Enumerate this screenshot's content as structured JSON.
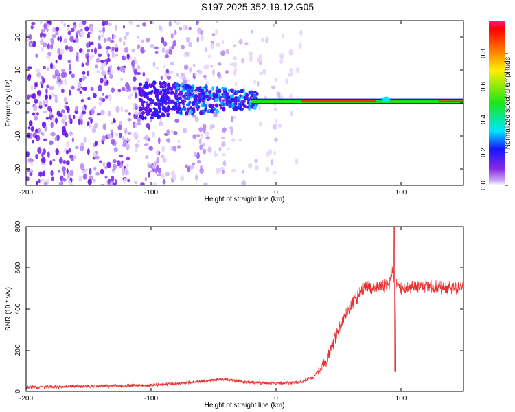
{
  "page": {
    "title": "S197.2025.352.19.12.G05"
  },
  "colors": {
    "snr_line": "#e83030",
    "axis": "#000000"
  },
  "chart_data": [
    {
      "type": "heatmap",
      "title": "",
      "xlabel": "Height of straight line (km)",
      "ylabel": "Frequency (Hz)",
      "xlim": [
        -200,
        150
      ],
      "ylim": [
        -25,
        25
      ],
      "x_ticks": [
        -200,
        -100,
        0,
        100
      ],
      "x_tick_labels": [
        "-200",
        "-100",
        "0",
        "100"
      ],
      "y_ticks": [
        -20,
        -10,
        0,
        10,
        20
      ],
      "y_tick_labels": [
        "-20",
        "-10",
        "0",
        "10",
        "20"
      ],
      "colorbar": {
        "label": "Normalized spectral amplitude",
        "range": [
          0,
          1
        ],
        "ticks": [
          0.0,
          0.2,
          0.4,
          0.6,
          0.8
        ],
        "tick_labels": [
          "0.0",
          "0.2",
          "0.4",
          "0.6",
          "0.8"
        ],
        "colormap": "rainbow"
      },
      "description_of_features": {
        "scatter_region_x": [
          -200,
          25
        ],
        "signal_track_x": [
          -20,
          150
        ],
        "signal_track_freq_hz": 0.5
      }
    },
    {
      "type": "line",
      "title": "",
      "xlabel": "Height of straight line (km)",
      "ylabel": "SNR (10 * v/v)",
      "xlim": [
        -200,
        150
      ],
      "ylim": [
        0,
        800
      ],
      "x_ticks": [
        -200,
        -100,
        0,
        100
      ],
      "x_tick_labels": [
        "-200",
        "-100",
        "0",
        "100"
      ],
      "y_ticks": [
        0,
        200,
        400,
        600,
        800
      ],
      "y_tick_labels": [
        "0",
        "200",
        "400",
        "600",
        "800"
      ],
      "series": [
        {
          "x": [
            -200,
            -150,
            -100,
            -75,
            -50,
            -40,
            -25,
            0,
            20,
            30,
            40,
            50,
            60,
            70,
            80,
            90,
            94,
            95,
            96,
            100,
            120,
            150
          ],
          "y": [
            20,
            25,
            30,
            40,
            55,
            60,
            45,
            40,
            45,
            70,
            150,
            300,
            420,
            500,
            510,
            510,
            600,
            95,
            520,
            500,
            510,
            500
          ]
        }
      ]
    }
  ]
}
